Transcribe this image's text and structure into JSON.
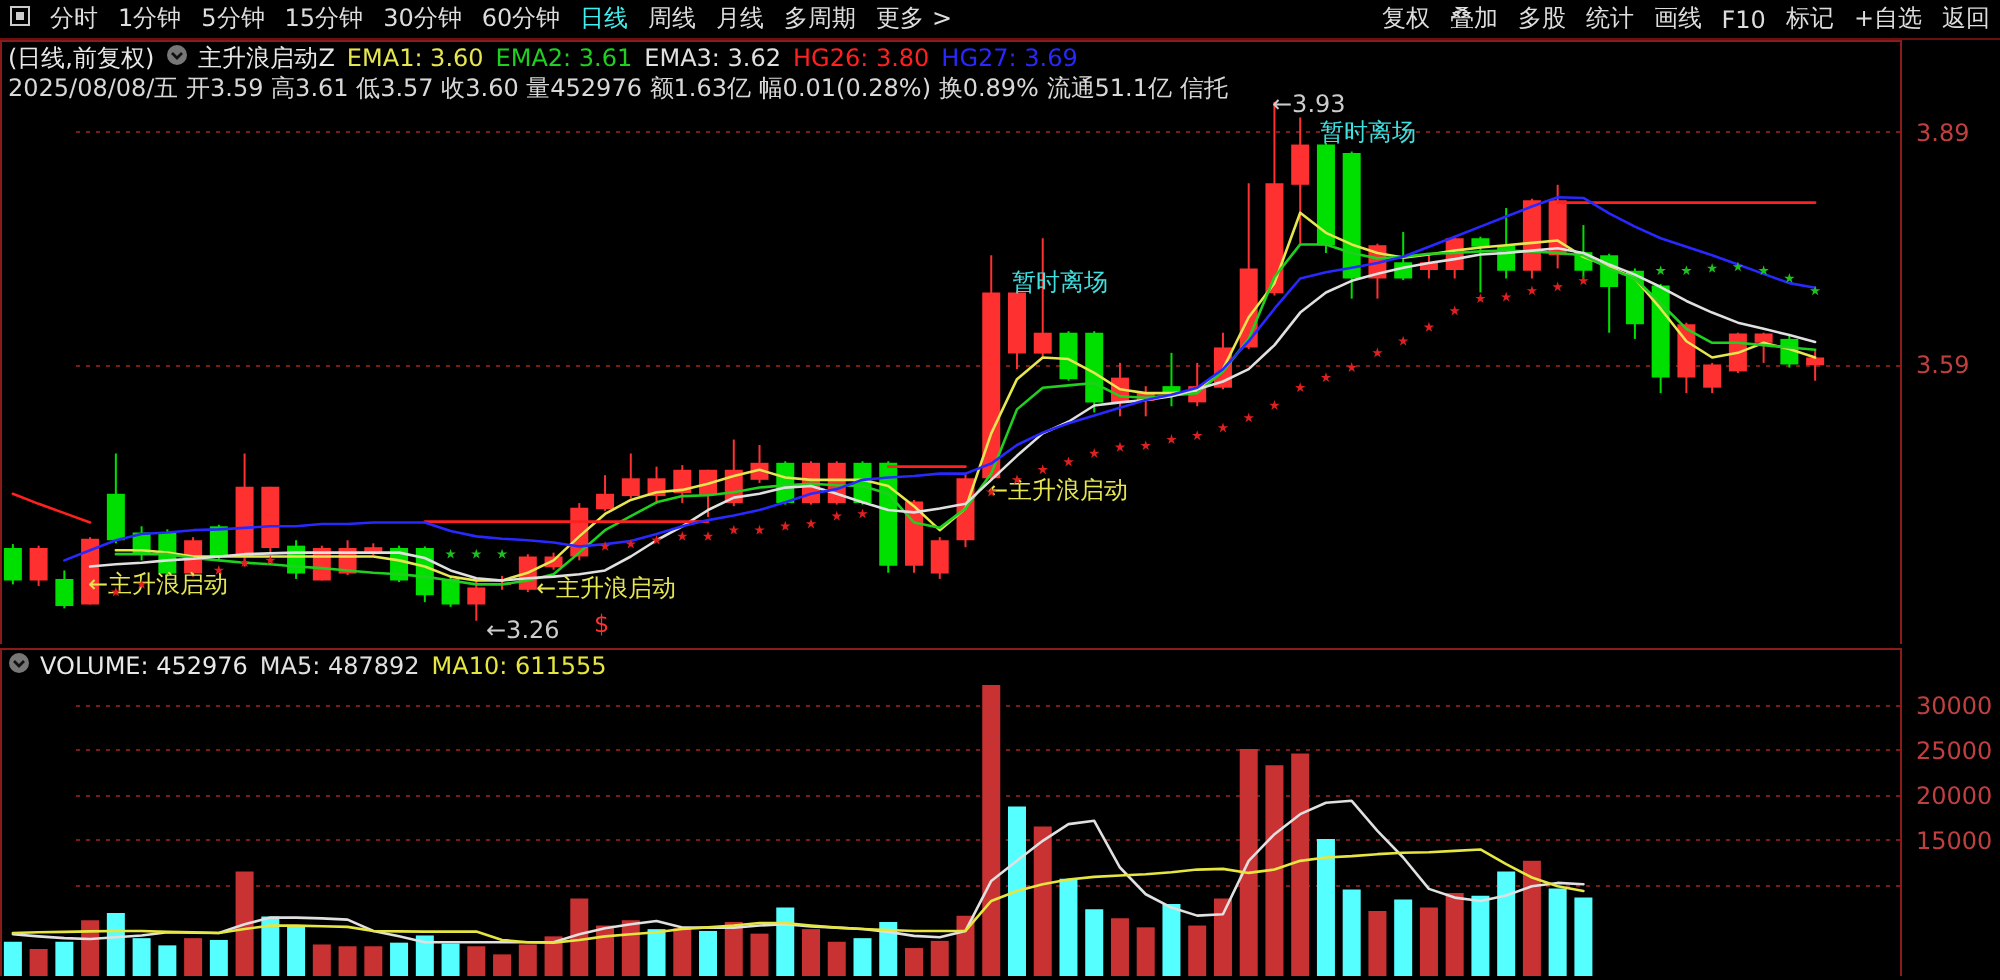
{
  "chart_data": [
    {
      "type": "other",
      "annotations": [
        "分时",
        "1分钟",
        "5分钟",
        "15分钟",
        "30分钟",
        "60分钟",
        "日线",
        "周线",
        "月线",
        "多周期",
        "更多 >",
        "复权",
        "叠加",
        "多股",
        "统计",
        "画线",
        "F10",
        "标记",
        "+自选",
        "返回"
      ]
    },
    {
      "type": "candlestick",
      "title": "(日线,前复权)",
      "subtitle": "主升浪启动Z",
      "legend": "top left",
      "tick_labels": "y",
      "grid": "y",
      "categories": [
        null,
        null,
        null,
        null,
        null,
        null,
        null,
        null,
        null,
        null,
        null,
        null,
        null,
        null,
        null,
        null,
        null,
        null,
        null,
        null,
        null,
        null,
        null,
        null,
        null,
        null,
        null,
        null,
        null,
        null,
        null,
        null,
        null,
        null,
        null,
        null,
        null,
        null,
        null,
        null,
        null,
        null,
        null,
        null,
        null,
        null,
        null,
        null,
        null,
        null,
        null,
        null,
        null,
        null,
        null,
        null,
        null,
        null,
        null,
        null,
        null,
        null,
        null,
        null,
        null,
        null,
        null,
        null,
        null,
        null,
        null
      ],
      "ylim": [
        3.23,
        4.01
      ],
      "yticks": [
        3.59,
        3.89
      ],
      "ohlc": [
        [
          3.354,
          3.359,
          3.307,
          3.312
        ],
        [
          3.312,
          3.357,
          3.305,
          3.354
        ],
        [
          3.314,
          3.325,
          3.276,
          3.279
        ],
        [
          3.281,
          3.368,
          3.281,
          3.366
        ],
        [
          3.424,
          3.476,
          3.36,
          3.364
        ],
        [
          3.374,
          3.382,
          3.338,
          3.347
        ],
        [
          3.374,
          3.378,
          3.317,
          3.321
        ],
        [
          3.321,
          3.368,
          3.317,
          3.364
        ],
        [
          3.382,
          3.384,
          3.338,
          3.343
        ],
        [
          3.343,
          3.476,
          3.33,
          3.433
        ],
        [
          3.354,
          3.433,
          3.347,
          3.433
        ],
        [
          3.357,
          3.364,
          3.314,
          3.321
        ],
        [
          3.312,
          3.357,
          3.312,
          3.354
        ],
        [
          3.321,
          3.364,
          3.319,
          3.354
        ],
        [
          3.347,
          3.36,
          3.345,
          3.355
        ],
        [
          3.354,
          3.357,
          3.31,
          3.312
        ],
        [
          3.354,
          3.356,
          3.284,
          3.293
        ],
        [
          3.314,
          3.317,
          3.278,
          3.281
        ],
        [
          3.281,
          3.312,
          3.26,
          3.303
        ],
        [
          3.306,
          3.318,
          3.3,
          3.308
        ],
        [
          3.3,
          3.346,
          3.297,
          3.343
        ],
        [
          3.329,
          3.348,
          3.326,
          3.343
        ],
        [
          3.343,
          3.412,
          3.338,
          3.406
        ],
        [
          3.404,
          3.448,
          3.402,
          3.424
        ],
        [
          3.421,
          3.476,
          3.418,
          3.444
        ],
        [
          3.421,
          3.459,
          3.411,
          3.444
        ],
        [
          3.425,
          3.461,
          3.412,
          3.455
        ],
        [
          3.422,
          3.455,
          3.394,
          3.455
        ],
        [
          3.412,
          3.494,
          3.408,
          3.455
        ],
        [
          3.442,
          3.487,
          3.438,
          3.464
        ],
        [
          3.464,
          3.466,
          3.41,
          3.412
        ],
        [
          3.412,
          3.466,
          3.41,
          3.464
        ],
        [
          3.412,
          3.466,
          3.41,
          3.464
        ],
        [
          3.464,
          3.466,
          3.41,
          3.412
        ],
        [
          3.464,
          3.466,
          3.322,
          3.331
        ],
        [
          3.331,
          3.416,
          3.322,
          3.414
        ],
        [
          3.321,
          3.368,
          3.314,
          3.364
        ],
        [
          3.364,
          3.451,
          3.355,
          3.444
        ],
        [
          3.444,
          3.732,
          3.442,
          3.684
        ],
        [
          3.605,
          3.686,
          3.585,
          3.684
        ],
        [
          3.605,
          3.754,
          3.598,
          3.632
        ],
        [
          3.632,
          3.634,
          3.57,
          3.572
        ],
        [
          3.632,
          3.634,
          3.529,
          3.542
        ],
        [
          3.542,
          3.593,
          3.524,
          3.574
        ],
        [
          3.544,
          3.563,
          3.524,
          3.554
        ],
        [
          3.563,
          3.606,
          3.537,
          3.554
        ],
        [
          3.542,
          3.593,
          3.537,
          3.563
        ],
        [
          3.561,
          3.632,
          3.559,
          3.613
        ],
        [
          3.613,
          3.825,
          3.611,
          3.715
        ],
        [
          3.683,
          3.93,
          3.68,
          3.825
        ],
        [
          3.823,
          3.91,
          3.747,
          3.875
        ],
        [
          3.875,
          3.877,
          3.735,
          3.745
        ],
        [
          3.864,
          3.866,
          3.676,
          3.702
        ],
        [
          3.702,
          3.747,
          3.676,
          3.745
        ],
        [
          3.723,
          3.762,
          3.7,
          3.702
        ],
        [
          3.713,
          3.732,
          3.702,
          3.723
        ],
        [
          3.713,
          3.756,
          3.702,
          3.754
        ],
        [
          3.754,
          3.756,
          3.684,
          3.743
        ],
        [
          3.745,
          3.793,
          3.702,
          3.712
        ],
        [
          3.712,
          3.805,
          3.702,
          3.803
        ],
        [
          3.732,
          3.823,
          3.715,
          3.803
        ],
        [
          3.736,
          3.771,
          3.702,
          3.712
        ],
        [
          3.732,
          3.734,
          3.632,
          3.691
        ],
        [
          3.712,
          3.715,
          3.624,
          3.643
        ],
        [
          3.693,
          3.695,
          3.554,
          3.574
        ],
        [
          3.574,
          3.645,
          3.554,
          3.643
        ],
        [
          3.561,
          3.593,
          3.554,
          3.591
        ],
        [
          3.582,
          3.632,
          3.58,
          3.631
        ],
        [
          3.619,
          3.632,
          3.593,
          3.631
        ],
        [
          3.624,
          3.628,
          3.587,
          3.591
        ],
        [
          3.59,
          3.61,
          3.57,
          3.6
        ]
      ],
      "series": [
        {
          "name": "EMA1: 3.60",
          "type": "line",
          "color": "#e6e650",
          "values": [
            null,
            null,
            null,
            null,
            3.351,
            3.351,
            3.348,
            3.343,
            3.343,
            3.343,
            3.343,
            3.343,
            3.343,
            3.343,
            3.343,
            3.338,
            3.33,
            3.317,
            3.312,
            3.312,
            3.322,
            3.338,
            3.369,
            3.398,
            3.416,
            3.426,
            3.429,
            3.437,
            3.447,
            3.455,
            3.445,
            3.442,
            3.442,
            3.442,
            3.434,
            3.408,
            3.377,
            3.405,
            3.502,
            3.572,
            3.6,
            3.598,
            3.58,
            3.559,
            3.554,
            3.554,
            3.556,
            3.585,
            3.652,
            3.696,
            3.787,
            3.761,
            3.746,
            3.735,
            3.729,
            3.733,
            3.738,
            3.742,
            3.745,
            3.748,
            3.751,
            3.73,
            3.717,
            3.702,
            3.663,
            3.621,
            3.6,
            3.606,
            3.619,
            3.611,
            3.6
          ]
        },
        {
          "name": "EMA2: 3.61",
          "type": "line",
          "color": "#20d020",
          "values": [
            null,
            null,
            null,
            null,
            3.346,
            3.346,
            3.346,
            3.341,
            3.338,
            3.335,
            3.333,
            3.33,
            3.328,
            3.325,
            3.322,
            3.32,
            3.317,
            3.312,
            3.307,
            3.307,
            3.312,
            3.32,
            3.348,
            3.377,
            3.395,
            3.413,
            3.421,
            3.422,
            3.426,
            3.432,
            3.435,
            3.437,
            3.435,
            3.434,
            3.424,
            3.387,
            3.38,
            3.405,
            3.45,
            3.533,
            3.561,
            3.564,
            3.567,
            3.55,
            3.548,
            3.551,
            3.554,
            3.582,
            3.624,
            3.704,
            3.746,
            3.746,
            3.735,
            3.728,
            3.73,
            3.734,
            3.735,
            3.737,
            3.738,
            3.737,
            3.735,
            3.732,
            3.715,
            3.702,
            3.67,
            3.637,
            3.619,
            3.619,
            3.616,
            3.613,
            3.61
          ]
        },
        {
          "name": "EMA3: 3.62",
          "type": "line",
          "color": "#e0e0e0",
          "values": [
            null,
            null,
            null,
            3.33,
            3.333,
            3.335,
            3.338,
            3.34,
            3.343,
            3.346,
            3.347,
            3.348,
            3.348,
            3.348,
            3.348,
            3.348,
            3.341,
            3.325,
            3.315,
            3.312,
            3.315,
            3.317,
            3.32,
            3.325,
            3.343,
            3.364,
            3.382,
            3.403,
            3.419,
            3.424,
            3.432,
            3.434,
            3.424,
            3.413,
            3.403,
            3.4,
            3.405,
            3.411,
            3.442,
            3.473,
            3.502,
            3.517,
            3.538,
            3.542,
            3.545,
            3.55,
            3.559,
            3.569,
            3.585,
            3.616,
            3.658,
            3.684,
            3.699,
            3.708,
            3.716,
            3.722,
            3.727,
            3.733,
            3.735,
            3.738,
            3.741,
            3.735,
            3.72,
            3.707,
            3.691,
            3.673,
            3.658,
            3.645,
            3.637,
            3.629,
            3.62
          ]
        },
        {
          "name": "HG26: 3.80",
          "type": "line",
          "color": "#ff2020",
          "values": [
            3.424,
            3.411,
            3.399,
            3.387,
            null,
            null,
            null,
            null,
            null,
            null,
            null,
            null,
            null,
            null,
            null,
            null,
            3.388,
            3.388,
            3.388,
            3.388,
            3.388,
            3.388,
            3.388,
            3.388,
            3.388,
            3.388,
            3.388,
            3.388,
            null,
            null,
            null,
            null,
            null,
            null,
            3.459,
            3.459,
            3.459,
            3.459,
            null,
            null,
            null,
            null,
            null,
            null,
            null,
            null,
            null,
            null,
            null,
            null,
            null,
            null,
            null,
            null,
            null,
            null,
            null,
            null,
            null,
            null,
            3.8,
            3.8,
            3.8,
            3.8,
            3.8,
            3.8,
            3.8,
            3.8,
            3.8,
            3.8,
            3.8
          ]
        },
        {
          "name": "HG27: 3.69",
          "type": "line",
          "color": "#2828ff",
          "values": [
            null,
            null,
            3.338,
            3.351,
            3.364,
            3.372,
            3.374,
            3.377,
            3.378,
            3.38,
            3.382,
            3.382,
            3.385,
            3.385,
            3.387,
            3.387,
            3.387,
            3.376,
            3.369,
            3.366,
            3.364,
            3.361,
            3.356,
            3.359,
            3.363,
            3.372,
            3.382,
            3.39,
            3.396,
            3.403,
            3.413,
            3.424,
            3.43,
            3.442,
            3.445,
            3.447,
            3.45,
            3.45,
            3.463,
            3.487,
            3.503,
            3.515,
            3.525,
            3.535,
            3.545,
            3.552,
            3.561,
            3.585,
            3.621,
            3.663,
            3.702,
            3.71,
            3.716,
            3.722,
            3.73,
            3.743,
            3.756,
            3.769,
            3.782,
            3.795,
            3.807,
            3.806,
            3.786,
            3.769,
            3.754,
            3.743,
            3.732,
            3.72,
            3.708,
            3.696,
            3.69
          ]
        },
        {
          "type": "scatter",
          "marker": "star",
          "color": "#e02020",
          "values": [
            null,
            null,
            null,
            null,
            3.297,
            3.307,
            null,
            null,
            3.325,
            3.335,
            3.338,
            null,
            null,
            null,
            null,
            null,
            null,
            null,
            null,
            null,
            null,
            null,
            null,
            3.356,
            3.359,
            3.364,
            3.369,
            3.369,
            3.377,
            3.377,
            3.382,
            3.385,
            3.395,
            3.398,
            null,
            null,
            null,
            null,
            3.426,
            3.442,
            3.455,
            3.465,
            3.476,
            3.484,
            3.486,
            3.494,
            3.499,
            3.509,
            3.522,
            3.538,
            3.561,
            3.574,
            3.587,
            3.606,
            3.621,
            3.639,
            3.66,
            3.676,
            3.678,
            3.686,
            3.691,
            3.699,
            null,
            null,
            null,
            null,
            null,
            null,
            null,
            null,
            null
          ]
        },
        {
          "type": "scatter",
          "marker": "star",
          "color": "#20c020",
          "values": [
            null,
            null,
            null,
            null,
            null,
            null,
            null,
            null,
            null,
            null,
            null,
            null,
            null,
            null,
            null,
            null,
            null,
            3.346,
            3.346,
            3.346,
            null,
            null,
            null,
            null,
            null,
            null,
            null,
            null,
            null,
            null,
            null,
            null,
            null,
            null,
            null,
            null,
            null,
            null,
            null,
            null,
            null,
            null,
            null,
            null,
            null,
            null,
            null,
            null,
            null,
            null,
            null,
            null,
            null,
            null,
            null,
            null,
            null,
            null,
            null,
            null,
            null,
            null,
            null,
            null,
            3.712,
            3.712,
            3.715,
            3.717,
            3.712,
            3.702,
            3.686
          ]
        }
      ],
      "annotations": [
        "2025/08/08/五 开3.59 高3.61 低3.57 收3.60 量452976 额1.63亿 幅0.01(0.28%) 换0.89% 流通51.1亿 信托",
        "←主升浪启动",
        "←主升浪启动",
        "←主升浪启动",
        "暂时离场",
        "暂时离场",
        "←3.26",
        "←3.93",
        "$"
      ]
    },
    {
      "type": "bar",
      "title": "VOLUME: 452976",
      "legend": "top left",
      "tick_labels": "y",
      "grid": "y",
      "categories": [
        null,
        null,
        null,
        null,
        null,
        null,
        null,
        null,
        null,
        null,
        null,
        null,
        null,
        null,
        null,
        null,
        null,
        null,
        null,
        null,
        null,
        null,
        null,
        null,
        null,
        null,
        null,
        null,
        null,
        null,
        null,
        null,
        null,
        null,
        null,
        null,
        null,
        null,
        null,
        null,
        null,
        null,
        null,
        null,
        null,
        null,
        null,
        null,
        null,
        null,
        null,
        null,
        null,
        null,
        null,
        null,
        null,
        null,
        null,
        null,
        null,
        null,
        null,
        null,
        null,
        null,
        null,
        null,
        null,
        null,
        null
      ],
      "ylim": [
        0,
        36400
      ],
      "yticks": [
        {
          "value": 10000,
          "label": null
        },
        15000,
        20000,
        25000,
        30000
      ],
      "series": [
        {
          "values": [
            3800,
            3000,
            3800,
            6200,
            7000,
            4200,
            3400,
            4200,
            4000,
            11600,
            6600,
            5500,
            3500,
            3300,
            3300,
            3700,
            4500,
            3600,
            3300,
            2400,
            3500,
            4400,
            8600,
            5600,
            6200,
            5200,
            5300,
            5000,
            6000,
            4700,
            7600,
            5200,
            3800,
            4200,
            6000,
            3100,
            3900,
            6700,
            32300,
            18800,
            16600,
            10800,
            7400,
            6400,
            5400,
            8000,
            5600,
            8600,
            25200,
            23400,
            24700,
            15200,
            9600,
            7200,
            8500,
            7600,
            9200,
            8900,
            11600,
            12800,
            9700,
            8700,
            null,
            null,
            null,
            null,
            null,
            null,
            null,
            null,
            null
          ],
          "colors": [
            "#55ffff",
            "#c83232",
            "#55ffff",
            "#c83232",
            "#55ffff",
            "#55ffff",
            "#55ffff",
            "#c83232",
            "#55ffff",
            "#c83232",
            "#55ffff",
            "#55ffff",
            "#c83232",
            "#c83232",
            "#c83232",
            "#55ffff",
            "#55ffff",
            "#55ffff",
            "#c83232",
            "#c83232",
            "#c83232",
            "#c83232",
            "#c83232",
            "#c83232",
            "#c83232",
            "#55ffff",
            "#c83232",
            "#55ffff",
            "#c83232",
            "#c83232",
            "#55ffff",
            "#c83232",
            "#c83232",
            "#55ffff",
            "#55ffff",
            "#c83232",
            "#c83232",
            "#c83232",
            "#c83232",
            "#55ffff",
            "#c83232",
            "#55ffff",
            "#55ffff",
            "#c83232",
            "#c83232",
            "#55ffff",
            "#c83232",
            "#c83232",
            "#c83232",
            "#c83232",
            "#c83232",
            "#55ffff",
            "#55ffff",
            "#c83232",
            "#55ffff",
            "#c83232",
            "#c83232",
            "#55ffff",
            "#55ffff",
            "#c83232",
            "#55ffff",
            "#55ffff",
            "#c83232",
            "#c83232",
            "#c83232",
            "#c83232",
            "#c83232",
            "#c83232",
            "#c83232",
            "#c83232",
            "#c83232"
          ]
        },
        {
          "name": "MA5: 487892",
          "type": "line",
          "color": "#e0e0e0",
          "values": [
            4630,
            4400,
            4200,
            4110,
            4300,
            4500,
            4850,
            4800,
            4780,
            5740,
            6480,
            6480,
            6400,
            6260,
            5000,
            4400,
            3740,
            3740,
            3740,
            3740,
            3740,
            3740,
            4630,
            5300,
            5740,
            6110,
            5370,
            5370,
            5370,
            5600,
            5740,
            5500,
            5370,
            5220,
            4900,
            4450,
            4300,
            5000,
            10550,
            12780,
            15000,
            16850,
            17220,
            12040,
            9070,
            7590,
            6700,
            6850,
            12780,
            15740,
            17960,
            19220,
            19440,
            16110,
            13150,
            9670,
            8700,
            8330,
            8930,
            9960,
            10330,
            10190,
            null,
            null,
            null,
            null,
            null,
            null,
            null,
            null,
            null
          ]
        },
        {
          "name": "MA10: 611555",
          "type": "line",
          "color": "#e6e640",
          "values": [
            4780,
            4850,
            4900,
            4950,
            5000,
            5000,
            4900,
            4850,
            4780,
            5220,
            5590,
            5590,
            5520,
            5450,
            5000,
            4950,
            4930,
            4930,
            4930,
            4000,
            3740,
            3700,
            4000,
            4400,
            4630,
            4850,
            5220,
            5400,
            5600,
            5890,
            5890,
            5600,
            5370,
            5220,
            5100,
            5000,
            5000,
            5000,
            8330,
            9440,
            10190,
            10700,
            11000,
            11150,
            11300,
            11520,
            11810,
            11890,
            11440,
            11810,
            12780,
            13150,
            13300,
            13520,
            13670,
            13740,
            13890,
            14040,
            12410,
            10930,
            9960,
            9440,
            null,
            null,
            null,
            null,
            null,
            null,
            null,
            null,
            null
          ]
        }
      ]
    }
  ]
}
